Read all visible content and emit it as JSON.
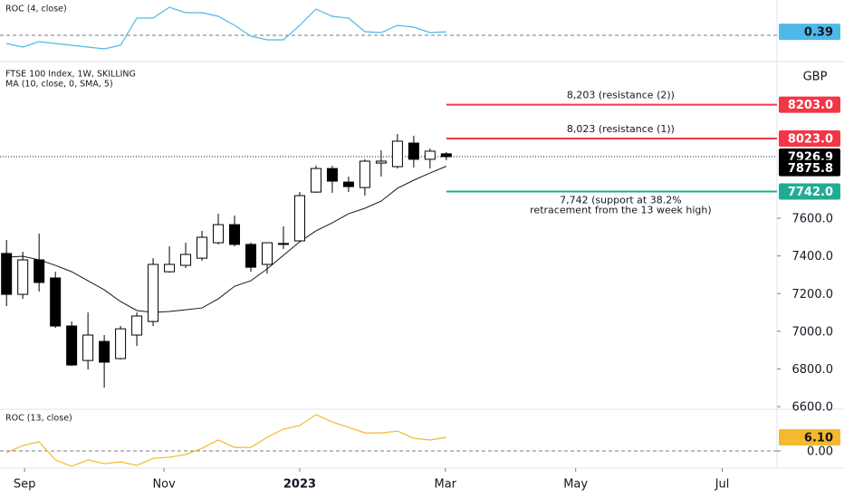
{
  "chart_data": [
    {
      "type": "line",
      "title": "ROC (4, close)",
      "color": "#4fb8e8",
      "values": [
        -0.9,
        -1.3,
        -0.7,
        -0.9,
        -1.1,
        -1.3,
        -1.5,
        -1.1,
        1.9,
        1.9,
        3.1,
        2.5,
        2.5,
        2.1,
        1.1,
        -0.1,
        -0.5,
        -0.5,
        1.1,
        2.9,
        2.1,
        1.9,
        0.4,
        0.3,
        1.1,
        0.9,
        0.3,
        0.39
      ],
      "ylim": [
        -2.6,
        3.9
      ],
      "yticks": [
        0.39
      ],
      "baseline": 0
    },
    {
      "type": "candlestick",
      "title": "FTSE 100 Index, 1W, SKILLING",
      "subtitle": "MA (10, close, 0, SMA, 5)",
      "unit": "GBP",
      "categories": [
        null,
        null,
        null,
        null,
        null,
        null,
        null,
        null,
        null,
        null,
        null,
        null,
        null,
        null,
        null,
        null,
        null,
        null,
        null,
        null,
        null,
        null,
        null,
        null,
        null,
        null,
        null,
        null
      ],
      "open": [
        7413,
        7196,
        7379,
        7283,
        7028,
        6845,
        6946,
        6855,
        6980,
        7052,
        7316,
        7350,
        7388,
        7470,
        7566,
        7461,
        7355,
        7466,
        7480,
        7739,
        7864,
        7792,
        7763,
        7893,
        7874,
        7999,
        7913,
        7942
      ],
      "high": [
        7485,
        7422,
        7518,
        7316,
        7052,
        7100,
        6980,
        7028,
        7100,
        7388,
        7451,
        7470,
        7533,
        7624,
        7614,
        7470,
        7470,
        7557,
        7739,
        7879,
        7879,
        7821,
        7913,
        7961,
        8047,
        8038,
        7970,
        7951
      ],
      "low": [
        7134,
        7172,
        7211,
        7018,
        6816,
        6797,
        6701,
        6850,
        6922,
        7028,
        7311,
        7336,
        7374,
        7461,
        7451,
        7316,
        7307,
        7437,
        7475,
        7735,
        7735,
        7739,
        7720,
        7821,
        7864,
        7869,
        7864,
        7908
      ],
      "close": [
        7196,
        7379,
        7259,
        7028,
        6821,
        6980,
        6836,
        7013,
        7081,
        7355,
        7355,
        7408,
        7499,
        7566,
        7461,
        7340,
        7470,
        7461,
        7720,
        7864,
        7797,
        7768,
        7903,
        7903,
        8009,
        7913,
        7956,
        7926.9
      ],
      "ma": [
        7393,
        7398,
        7379,
        7350,
        7316,
        7268,
        7220,
        7158,
        7110,
        7100,
        7105,
        7114,
        7124,
        7172,
        7239,
        7268,
        7331,
        7403,
        7475,
        7533,
        7576,
        7624,
        7653,
        7691,
        7759,
        7802,
        7840,
        7875.8
      ],
      "ma_color": "#131722",
      "up_color": "#ffffff",
      "down_color": "#000000",
      "ylim": [
        6586,
        8398
      ],
      "yticks": [
        {
          "value": 6600,
          "label": "6600.0"
        },
        {
          "value": 6800,
          "label": "6800.0"
        },
        {
          "value": 7000,
          "label": "7000.0"
        },
        {
          "value": 7200,
          "label": "7200.0"
        },
        {
          "value": 7400,
          "label": "7400.0"
        },
        {
          "value": 7600,
          "label": "7600.0"
        }
      ],
      "xlim": [
        -0.4,
        47.3
      ],
      "xticks": [
        {
          "value": 1.11,
          "label": "Sep"
        },
        {
          "value": 9.67,
          "label": "Nov"
        },
        {
          "value": 18,
          "label": "2023"
        },
        {
          "value": 26.94,
          "label": "Mar"
        },
        {
          "value": 34.94,
          "label": "May"
        },
        {
          "value": 43.94,
          "label": "Jul"
        }
      ],
      "levels": [
        {
          "value": 8203,
          "label": "8203.0",
          "annotation": [
            "8,203 (resistance (2))"
          ],
          "color": "#f23645"
        },
        {
          "value": 8023,
          "label": "8023.0",
          "annotation": [
            "8,023 (resistance (1))"
          ],
          "color": "#f23645"
        },
        {
          "value": 7742,
          "label": "7742.0",
          "annotation": [
            "7,742 (support at 38.2%",
            "retracement from the 13 week high)"
          ],
          "color": "#22ab94"
        }
      ]
    },
    {
      "type": "line",
      "title": "ROC (13, close)",
      "color": "#f5b82e",
      "values": [
        -0.8,
        2.4,
        4.1,
        -4,
        -6.9,
        -4,
        -5.7,
        -4.9,
        -6.5,
        -3.3,
        -2.8,
        -1.6,
        1.2,
        4.9,
        1.6,
        1.6,
        6.1,
        9.8,
        11.4,
        16.3,
        13,
        10.6,
        8.1,
        8.1,
        8.9,
        5.7,
        4.9,
        6.1
      ],
      "ylim": [
        -7.7,
        18.7
      ],
      "yticks": [
        {
          "value": 0,
          "label": "0.00"
        },
        {
          "value": 6.1,
          "label": "6.10"
        }
      ],
      "baseline": 0
    }
  ]
}
